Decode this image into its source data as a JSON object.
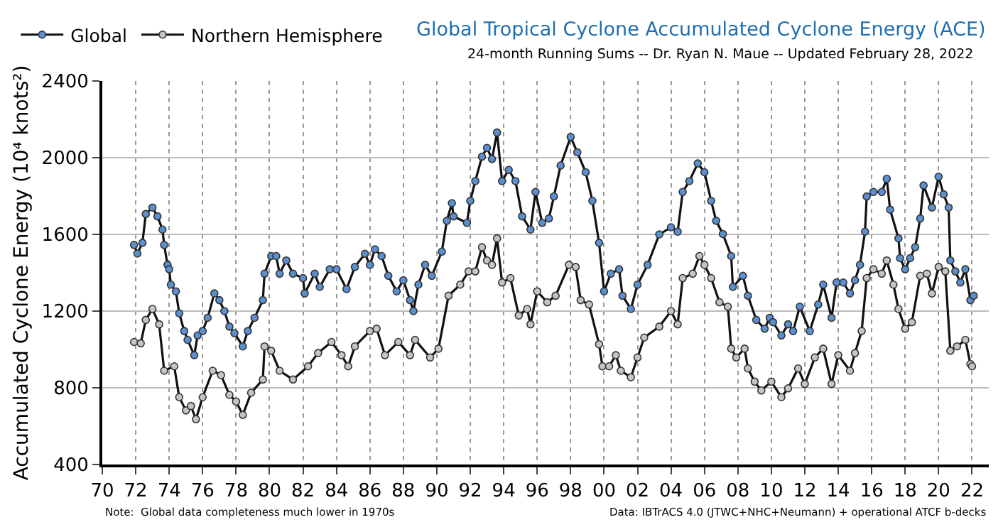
{
  "chart_data": {
    "type": "line",
    "title": "Global Tropical Cyclone Accumulated Cyclone Energy (ACE)",
    "subtitle": "24-month Running Sums -- Dr. Ryan N. Maue -- Updated February 28, 2022",
    "ylabel": "Accumulated Cyclone Energy (10⁴ knots²)",
    "annotations": [
      "Note:  Global data completeness much lower in 1970s",
      "Data: IBTrACS 4.0 (JTWC+NHC+Neumann) + operational ATCF b-decks"
    ],
    "xlim": [
      1970,
      2023
    ],
    "xticks": [
      {
        "value": 1970,
        "label": "70"
      },
      {
        "value": 1972,
        "label": "72"
      },
      {
        "value": 1974,
        "label": "74"
      },
      {
        "value": 1976,
        "label": "76"
      },
      {
        "value": 1978,
        "label": "78"
      },
      {
        "value": 1980,
        "label": "80"
      },
      {
        "value": 1982,
        "label": "82"
      },
      {
        "value": 1984,
        "label": "84"
      },
      {
        "value": 1986,
        "label": "86"
      },
      {
        "value": 1988,
        "label": "88"
      },
      {
        "value": 1990,
        "label": "90"
      },
      {
        "value": 1992,
        "label": "92"
      },
      {
        "value": 1994,
        "label": "94"
      },
      {
        "value": 1996,
        "label": "96"
      },
      {
        "value": 1998,
        "label": "98"
      },
      {
        "value": 2000,
        "label": "00"
      },
      {
        "value": 2002,
        "label": "02"
      },
      {
        "value": 2004,
        "label": "04"
      },
      {
        "value": 2006,
        "label": "06"
      },
      {
        "value": 2008,
        "label": "08"
      },
      {
        "value": 2010,
        "label": "10"
      },
      {
        "value": 2012,
        "label": "12"
      },
      {
        "value": 2014,
        "label": "14"
      },
      {
        "value": 2016,
        "label": "16"
      },
      {
        "value": 2018,
        "label": "18"
      },
      {
        "value": 2020,
        "label": "20"
      },
      {
        "value": 2022,
        "label": "22"
      }
    ],
    "ylim": [
      400,
      2400
    ],
    "yticks": [
      400,
      800,
      1200,
      1600,
      2000,
      2400
    ],
    "grid": true,
    "legend": "top left",
    "marker": "circle",
    "line_style": "solid",
    "series": [
      {
        "name": "Global",
        "color": "#5b8fd0",
        "x": [
          1971.9,
          1972.1,
          1972.4,
          1972.6,
          1973.0,
          1973.3,
          1973.6,
          1973.7,
          1973.9,
          1974.0,
          1974.1,
          1974.4,
          1974.6,
          1974.9,
          1975.1,
          1975.5,
          1975.7,
          1976.0,
          1976.3,
          1976.7,
          1977.0,
          1977.3,
          1977.6,
          1977.9,
          1978.4,
          1978.7,
          1979.1,
          1979.6,
          1979.7,
          1980.1,
          1980.4,
          1980.6,
          1981.0,
          1981.4,
          1982.0,
          1982.1,
          1982.7,
          1983.0,
          1983.6,
          1984.0,
          1984.6,
          1985.1,
          1985.7,
          1986.0,
          1986.3,
          1986.7,
          1987.1,
          1987.6,
          1988.0,
          1988.4,
          1988.6,
          1988.9,
          1989.3,
          1989.7,
          1990.3,
          1990.6,
          1990.9,
          1991.0,
          1991.8,
          1992.0,
          1992.3,
          1992.7,
          1993.0,
          1993.3,
          1993.6,
          1993.9,
          1994.3,
          1994.7,
          1995.1,
          1995.6,
          1995.9,
          1996.3,
          1996.7,
          1997.0,
          1997.4,
          1998.0,
          1998.4,
          1998.9,
          1999.3,
          1999.7,
          2000.0,
          2000.4,
          2000.9,
          2001.1,
          2001.6,
          2002.0,
          2002.6,
          2003.3,
          2004.0,
          2004.4,
          2004.7,
          2005.1,
          2005.6,
          2006.0,
          2006.4,
          2006.7,
          2007.1,
          2007.6,
          2007.7,
          2008.3,
          2008.6,
          2009.1,
          2009.6,
          2009.9,
          2010.1,
          2010.6,
          2011.0,
          2011.3,
          2011.7,
          2012.3,
          2012.8,
          2013.1,
          2013.6,
          2013.9,
          2014.3,
          2014.7,
          2015.0,
          2015.3,
          2015.6,
          2015.7,
          2016.1,
          2016.6,
          2016.9,
          2017.1,
          2017.6,
          2017.7,
          2018.0,
          2018.3,
          2018.6,
          2018.9,
          2019.1,
          2019.6,
          2020.0,
          2020.3,
          2020.6,
          2020.7,
          2021.0,
          2021.3,
          2021.6,
          2021.9,
          2022.1
        ],
        "values": [
          1545,
          1500,
          1556,
          1706,
          1740,
          1694,
          1625,
          1545,
          1441,
          1418,
          1338,
          1303,
          1188,
          1096,
          1050,
          970,
          1073,
          1096,
          1165,
          1292,
          1257,
          1200,
          1119,
          1085,
          1016,
          1096,
          1165,
          1257,
          1395,
          1487,
          1487,
          1395,
          1464,
          1395,
          1372,
          1292,
          1395,
          1326,
          1418,
          1418,
          1315,
          1430,
          1499,
          1441,
          1522,
          1487,
          1384,
          1303,
          1361,
          1257,
          1200,
          1338,
          1441,
          1384,
          1510,
          1671,
          1763,
          1694,
          1660,
          1775,
          1878,
          2005,
          2051,
          1993,
          2131,
          1878,
          1936,
          1878,
          1694,
          1625,
          1821,
          1660,
          1683,
          1798,
          1959,
          2108,
          2028,
          1924,
          1775,
          1556,
          1303,
          1395,
          1418,
          1280,
          1211,
          1338,
          1441,
          1600,
          1637,
          1614,
          1821,
          1878,
          1970,
          1924,
          1775,
          1671,
          1602,
          1487,
          1326,
          1384,
          1280,
          1154,
          1108,
          1165,
          1142,
          1073,
          1131,
          1096,
          1223,
          1096,
          1234,
          1338,
          1165,
          1349,
          1349,
          1292,
          1361,
          1441,
          1614,
          1798,
          1821,
          1821,
          1890,
          1729,
          1579,
          1476,
          1418,
          1476,
          1533,
          1683,
          1855,
          1740,
          1901,
          1809,
          1740,
          1464,
          1407,
          1349,
          1418,
          1257,
          1280
        ]
      },
      {
        "name": "Northern Hemisphere",
        "color": "#c4c4c4",
        "x": [
          1971.9,
          1972.3,
          1972.6,
          1973.0,
          1973.4,
          1973.7,
          1974.3,
          1974.6,
          1975.0,
          1975.3,
          1975.6,
          1976.0,
          1976.6,
          1977.1,
          1977.6,
          1978.0,
          1978.4,
          1978.9,
          1979.6,
          1979.7,
          1980.1,
          1980.6,
          1981.4,
          1982.3,
          1982.9,
          1983.7,
          1984.3,
          1984.7,
          1985.1,
          1986.0,
          1986.4,
          1986.9,
          1987.7,
          1988.4,
          1988.7,
          1989.6,
          1990.1,
          1990.7,
          1991.4,
          1991.9,
          1992.3,
          1992.7,
          1993.0,
          1993.3,
          1993.6,
          1993.9,
          1994.4,
          1994.9,
          1995.4,
          1995.6,
          1996.0,
          1996.6,
          1997.1,
          1997.9,
          1998.3,
          1998.6,
          1999.1,
          1999.7,
          1999.9,
          2000.3,
          2000.7,
          2001.0,
          2001.6,
          2002.0,
          2002.4,
          2003.3,
          2004.0,
          2004.4,
          2004.7,
          2005.3,
          2005.7,
          2006.0,
          2006.4,
          2006.9,
          2007.4,
          2007.6,
          2007.9,
          2008.4,
          2008.6,
          2009.0,
          2009.4,
          2010.0,
          2010.6,
          2011.0,
          2011.6,
          2012.0,
          2012.6,
          2013.1,
          2013.6,
          2014.0,
          2014.7,
          2015.0,
          2015.4,
          2015.7,
          2016.1,
          2016.6,
          2016.9,
          2017.3,
          2017.6,
          2018.0,
          2018.4,
          2018.9,
          2019.3,
          2019.6,
          2020.0,
          2020.4,
          2020.7,
          2021.1,
          2021.6,
          2021.9,
          2022.0
        ],
        "values": [
          1039,
          1032,
          1154,
          1211,
          1131,
          889,
          912,
          751,
          682,
          705,
          636,
          751,
          889,
          866,
          763,
          728,
          659,
          774,
          843,
          1016,
          993,
          889,
          843,
          912,
          981,
          1039,
          970,
          912,
          1016,
          1096,
          1108,
          970,
          1039,
          970,
          1050,
          958,
          1004,
          1280,
          1338,
          1407,
          1407,
          1533,
          1464,
          1441,
          1579,
          1349,
          1372,
          1177,
          1211,
          1131,
          1303,
          1246,
          1280,
          1441,
          1430,
          1257,
          1234,
          1027,
          912,
          912,
          970,
          889,
          855,
          958,
          1062,
          1119,
          1200,
          1131,
          1372,
          1395,
          1487,
          1441,
          1372,
          1246,
          1223,
          1004,
          958,
          1004,
          901,
          832,
          786,
          832,
          751,
          797,
          901,
          820,
          958,
          1004,
          820,
          970,
          889,
          981,
          1096,
          1372,
          1418,
          1395,
          1464,
          1338,
          1211,
          1108,
          1142,
          1384,
          1395,
          1292,
          1430,
          1407,
          993,
          1016,
          1050,
          924,
          912
        ]
      }
    ]
  }
}
